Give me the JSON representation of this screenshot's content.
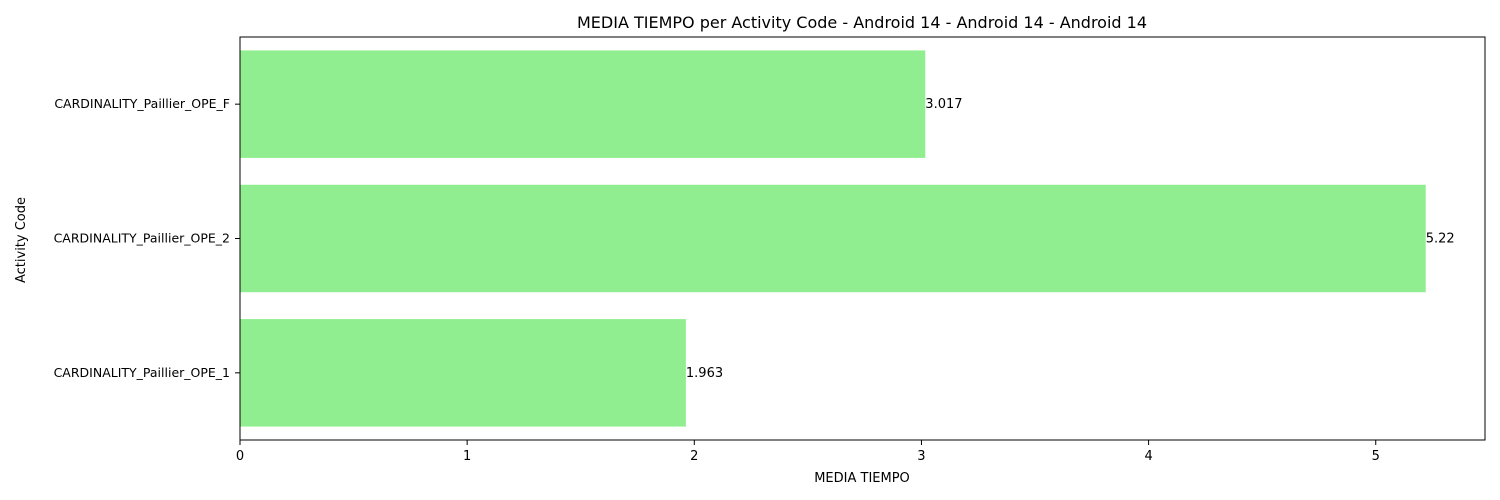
{
  "chart_data": {
    "type": "bar",
    "orientation": "horizontal",
    "title": "MEDIA TIEMPO per Activity Code - Android 14 - Android 14 - Android 14",
    "xlabel": "MEDIA TIEMPO",
    "ylabel": "Activity Code",
    "categories": [
      "CARDINALITY_Paillier_OPE_1",
      "CARDINALITY_Paillier_OPE_2",
      "CARDINALITY_Paillier_OPE_F"
    ],
    "values": [
      1.963,
      5.22,
      3.017
    ],
    "value_labels": [
      "1.963",
      "5.22",
      "3.017"
    ],
    "xlim": [
      0,
      5.481
    ],
    "xticks": [
      0,
      1,
      2,
      3,
      4,
      5
    ],
    "xtick_labels": [
      "0",
      "1",
      "2",
      "3",
      "4",
      "5"
    ],
    "bar_color": "#90ee90",
    "grid": false,
    "legend": "none"
  }
}
